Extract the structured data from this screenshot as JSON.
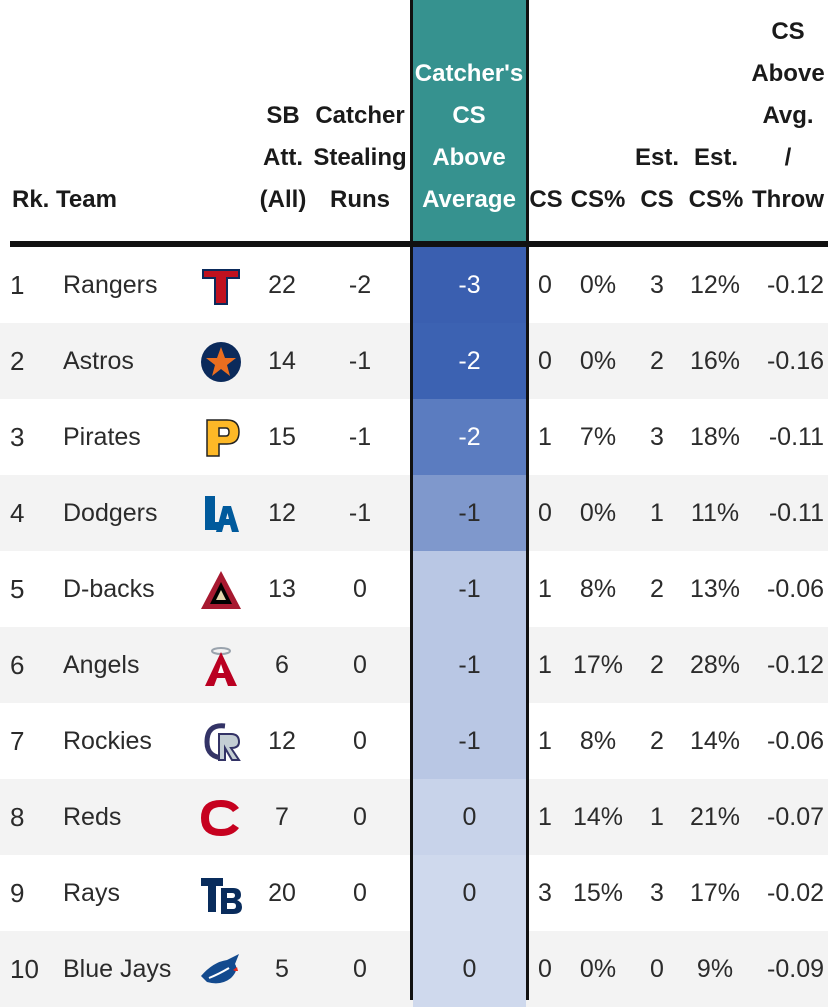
{
  "chart_data": {
    "type": "table",
    "columns": {
      "rank": "Rk.",
      "team": "Team",
      "sb_att": [
        "SB",
        "Att.",
        "(All)"
      ],
      "catcher_stealing_runs": [
        "Catcher",
        "Stealing",
        "Runs"
      ],
      "cs_above_avg": [
        "Catcher's",
        "CS",
        "Above",
        "Average"
      ],
      "cs": "CS",
      "cs_pct": "CS%",
      "est_cs": [
        "Est.",
        "CS"
      ],
      "est_cs_pct": [
        "Est.",
        "CS%"
      ],
      "cs_above_avg_per_throw": [
        "CS",
        "Above",
        "Avg.",
        "/",
        "Throw"
      ]
    },
    "rows": [
      {
        "rank": "1",
        "team": "Rangers",
        "logo": "rangers-logo",
        "sb_att": "22",
        "csr": "-2",
        "csaa": "-3",
        "cs": "0",
        "cs_pct": "0%",
        "est_cs": "3",
        "est_pct": "12%",
        "per_throw": "-0.12",
        "heat": "#3a5fb0"
      },
      {
        "rank": "2",
        "team": "Astros",
        "logo": "astros-logo",
        "sb_att": "14",
        "csr": "-1",
        "csaa": "-2",
        "cs": "0",
        "cs_pct": "0%",
        "est_cs": "2",
        "est_pct": "16%",
        "per_throw": "-0.16",
        "heat": "#3c62b2"
      },
      {
        "rank": "3",
        "team": "Pirates",
        "logo": "pirates-logo",
        "sb_att": "15",
        "csr": "-1",
        "csaa": "-2",
        "cs": "1",
        "cs_pct": "7%",
        "est_cs": "3",
        "est_pct": "18%",
        "per_throw": "-0.11",
        "heat": "#5b7cc0"
      },
      {
        "rank": "4",
        "team": "Dodgers",
        "logo": "dodgers-logo",
        "sb_att": "12",
        "csr": "-1",
        "csaa": "-1",
        "cs": "0",
        "cs_pct": "0%",
        "est_cs": "1",
        "est_pct": "11%",
        "per_throw": "-0.11",
        "heat": "#7f98cc"
      },
      {
        "rank": "5",
        "team": "D-backs",
        "logo": "dbacks-logo",
        "sb_att": "13",
        "csr": "0",
        "csaa": "-1",
        "cs": "1",
        "cs_pct": "8%",
        "est_cs": "2",
        "est_pct": "13%",
        "per_throw": "-0.06",
        "heat": "#b9c7e4"
      },
      {
        "rank": "6",
        "team": "Angels",
        "logo": "angels-logo",
        "sb_att": "6",
        "csr": "0",
        "csaa": "-1",
        "cs": "1",
        "cs_pct": "17%",
        "est_cs": "2",
        "est_pct": "28%",
        "per_throw": "-0.12",
        "heat": "#b9c7e4"
      },
      {
        "rank": "7",
        "team": "Rockies",
        "logo": "rockies-logo",
        "sb_att": "12",
        "csr": "0",
        "csaa": "-1",
        "cs": "1",
        "cs_pct": "8%",
        "est_cs": "2",
        "est_pct": "14%",
        "per_throw": "-0.06",
        "heat": "#b9c7e4"
      },
      {
        "rank": "8",
        "team": "Reds",
        "logo": "reds-logo",
        "sb_att": "7",
        "csr": "0",
        "csaa": "0",
        "cs": "1",
        "cs_pct": "14%",
        "est_cs": "1",
        "est_pct": "21%",
        "per_throw": "-0.07",
        "heat": "#c8d3ea"
      },
      {
        "rank": "9",
        "team": "Rays",
        "logo": "rays-logo",
        "sb_att": "20",
        "csr": "0",
        "csaa": "0",
        "cs": "3",
        "cs_pct": "15%",
        "est_cs": "3",
        "est_pct": "17%",
        "per_throw": "-0.02",
        "heat": "#cfd9ed"
      },
      {
        "rank": "10",
        "team": "Blue Jays",
        "logo": "bluejays-logo",
        "sb_att": "5",
        "csr": "0",
        "csaa": "0",
        "cs": "0",
        "cs_pct": "0%",
        "est_cs": "0",
        "est_pct": "9%",
        "per_throw": "-0.09",
        "heat": "#cfd9ed"
      }
    ]
  },
  "colors": {
    "highlight_header": "#36928f",
    "border": "#111111",
    "alt_row": "#f3f3f3",
    "light_value_text": "#ffffff",
    "dark_value_text": "#2b2b2b"
  }
}
